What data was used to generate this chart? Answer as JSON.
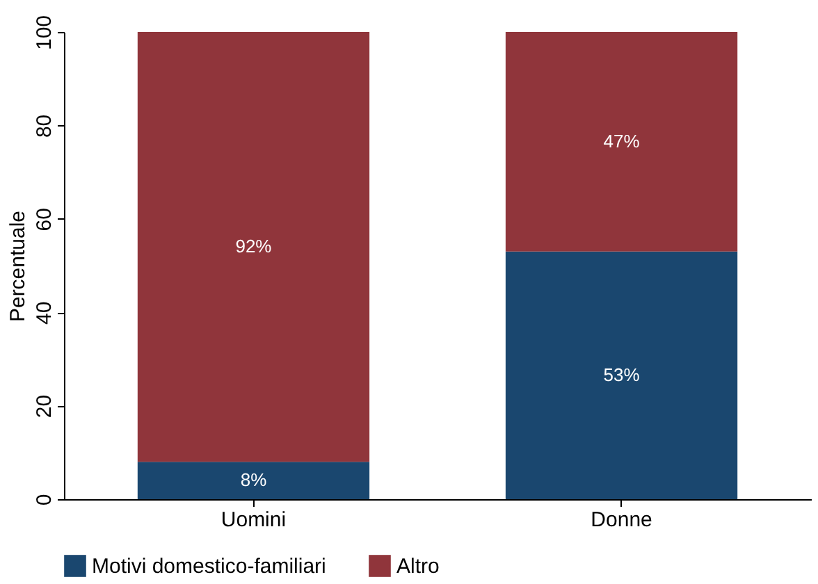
{
  "chart_data": {
    "type": "bar",
    "stacked": true,
    "ylabel": "Percentuale",
    "categories": [
      "Uomini",
      "Donne"
    ],
    "series": [
      {
        "name": "Motivi domestico-familiari",
        "color": "#1a476f",
        "values": [
          8,
          53
        ],
        "value_labels": [
          "8%",
          "53%"
        ]
      },
      {
        "name": "Altro",
        "color": "#90353b",
        "values": [
          92,
          47
        ],
        "value_labels": [
          "92%",
          "47%"
        ]
      }
    ],
    "ylim": [
      0,
      100
    ],
    "yticks": [
      0,
      20,
      40,
      60,
      80,
      100
    ],
    "grid": false,
    "legend": "bottom"
  }
}
